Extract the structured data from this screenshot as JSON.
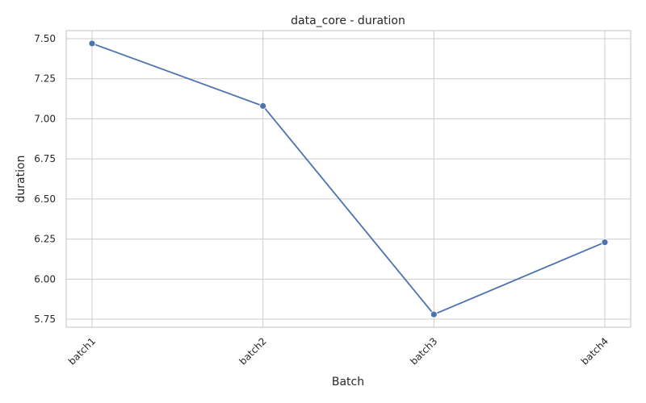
{
  "chart_data": {
    "type": "line",
    "title": "data_core - duration",
    "xlabel": "Batch",
    "ylabel": "duration",
    "categories": [
      "batch1",
      "batch2",
      "batch3",
      "batch4"
    ],
    "values": [
      7.47,
      7.08,
      5.78,
      6.23
    ],
    "ylim": [
      5.7,
      7.55
    ],
    "yticks": [
      "5.75",
      "6.00",
      "6.25",
      "6.50",
      "6.75",
      "7.00",
      "7.25",
      "7.50"
    ],
    "grid": true,
    "markers": true,
    "line_color": "#4c72b0",
    "grid_color": "#cccccc"
  }
}
